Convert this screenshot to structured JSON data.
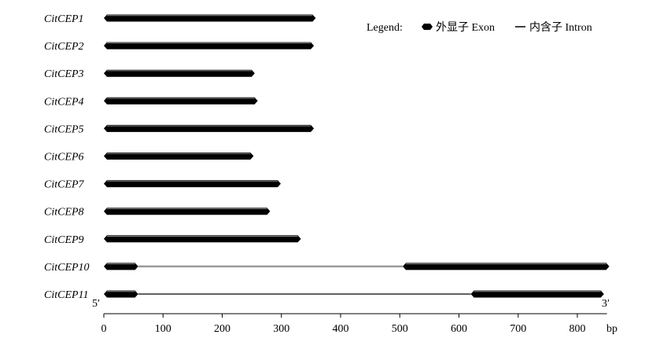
{
  "legend": {
    "title": "Legend:",
    "exon_label": "外显子 Exon",
    "intron_label": "内含子 Intron"
  },
  "axis": {
    "unit": "bp",
    "ticks": [
      0,
      100,
      200,
      300,
      400,
      500,
      600,
      700,
      800
    ],
    "min": 0,
    "max": 850,
    "five_prime": "5′",
    "three_prime": "3′"
  },
  "colors": {
    "exon": "#000000",
    "intron": "#000000",
    "intron_alt": "#9a9a9a",
    "axis": "#000000"
  },
  "genes": [
    {
      "name": "CitCEP1",
      "exons": [
        [
          0,
          358
        ]
      ],
      "introns": []
    },
    {
      "name": "CitCEP2",
      "exons": [
        [
          0,
          355
        ]
      ],
      "introns": []
    },
    {
      "name": "CitCEP3",
      "exons": [
        [
          0,
          255
        ]
      ],
      "introns": []
    },
    {
      "name": "CitCEP4",
      "exons": [
        [
          0,
          260
        ]
      ],
      "introns": []
    },
    {
      "name": "CitCEP5",
      "exons": [
        [
          0,
          355
        ]
      ],
      "introns": []
    },
    {
      "name": "CitCEP6",
      "exons": [
        [
          0,
          253
        ]
      ],
      "introns": []
    },
    {
      "name": "CitCEP7",
      "exons": [
        [
          0,
          299
        ]
      ],
      "introns": []
    },
    {
      "name": "CitCEP8",
      "exons": [
        [
          0,
          281
        ]
      ],
      "introns": []
    },
    {
      "name": "CitCEP9",
      "exons": [
        [
          0,
          333
        ]
      ],
      "introns": []
    },
    {
      "name": "CitCEP10",
      "exons": [
        [
          0,
          58
        ],
        [
          505,
          854
        ]
      ],
      "introns": [
        [
          58,
          505
        ]
      ],
      "intron_color": "intron_alt"
    },
    {
      "name": "CitCEP11",
      "exons": [
        [
          0,
          58
        ],
        [
          620,
          845
        ]
      ],
      "introns": [
        [
          58,
          620
        ]
      ],
      "intron_color": "intron"
    }
  ]
}
